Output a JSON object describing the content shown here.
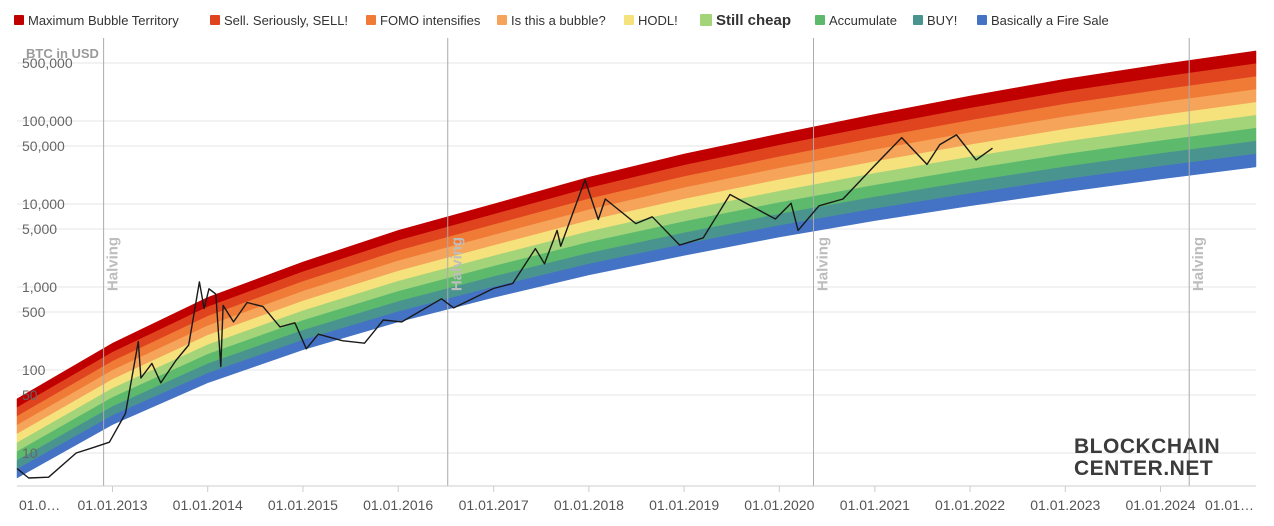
{
  "legend": [
    {
      "label": "Maximum Bubble Territory",
      "color": "#c00000",
      "bold": false
    },
    {
      "label": "Sell. Seriously, SELL!",
      "color": "#e0441f",
      "bold": false
    },
    {
      "label": "FOMO intensifies",
      "color": "#f07b37",
      "bold": false
    },
    {
      "label": "Is this a bubble?",
      "color": "#f5a45a",
      "bold": false
    },
    {
      "label": "HODL!",
      "color": "#f6e27c",
      "bold": false
    },
    {
      "label": "Still cheap",
      "color": "#a3d47a",
      "bold": true
    },
    {
      "label": "Accumulate",
      "color": "#5dba6c",
      "bold": false
    },
    {
      "label": "BUY!",
      "color": "#4a948f",
      "bold": false
    },
    {
      "label": "Basically a Fire Sale",
      "color": "#4472c4",
      "bold": false
    }
  ],
  "logo": {
    "line1": "BLOCKCHAIN",
    "line2": "CENTER.NET"
  },
  "chart_data": {
    "type": "area",
    "title": "",
    "ylabel": "BTC in USD",
    "y_scale": "log",
    "ylim": [
      4,
      1000000
    ],
    "xlim": [
      "2012-01-01",
      "2025-01-01"
    ],
    "y_ticks": [
      {
        "value": 500000,
        "label": "500,000"
      },
      {
        "value": 100000,
        "label": "100,000"
      },
      {
        "value": 50000,
        "label": "50,000"
      },
      {
        "value": 10000,
        "label": "10,000"
      },
      {
        "value": 5000,
        "label": "5,000"
      },
      {
        "value": 1000,
        "label": "1,000"
      },
      {
        "value": 500,
        "label": "500"
      },
      {
        "value": 100,
        "label": "100"
      },
      {
        "value": 50,
        "label": "50"
      },
      {
        "value": 10,
        "label": "10"
      }
    ],
    "x_ticks": [
      {
        "date": "2012-01-01",
        "label": "01.0…"
      },
      {
        "date": "2013-01-01",
        "label": "01.01.2013"
      },
      {
        "date": "2014-01-01",
        "label": "01.01.2014"
      },
      {
        "date": "2015-01-01",
        "label": "01.01.2015"
      },
      {
        "date": "2016-01-01",
        "label": "01.01.2016"
      },
      {
        "date": "2017-01-01",
        "label": "01.01.2017"
      },
      {
        "date": "2018-01-01",
        "label": "01.01.2018"
      },
      {
        "date": "2019-01-01",
        "label": "01.01.2019"
      },
      {
        "date": "2020-01-01",
        "label": "01.01.2020"
      },
      {
        "date": "2021-01-01",
        "label": "01.01.2021"
      },
      {
        "date": "2022-01-01",
        "label": "01.01.2022"
      },
      {
        "date": "2023-01-01",
        "label": "01.01.2023"
      },
      {
        "date": "2024-01-01",
        "label": "01.01.2024"
      },
      {
        "date": "2025-01-01",
        "label": "01.01…"
      }
    ],
    "annotations": [
      {
        "date": "2012-11-28",
        "label": "Halving"
      },
      {
        "date": "2016-07-09",
        "label": "Halving"
      },
      {
        "date": "2020-05-11",
        "label": "Halving"
      },
      {
        "date": "2024-04-20",
        "label": "Halving"
      }
    ],
    "bands": {
      "top": [
        {
          "date": "2012-01-01",
          "value": 45
        },
        {
          "date": "2013-01-01",
          "value": 210
        },
        {
          "date": "2014-01-01",
          "value": 750
        },
        {
          "date": "2015-01-01",
          "value": 2000
        },
        {
          "date": "2016-01-01",
          "value": 4800
        },
        {
          "date": "2017-01-01",
          "value": 10000
        },
        {
          "date": "2018-01-01",
          "value": 21000
        },
        {
          "date": "2019-01-01",
          "value": 40000
        },
        {
          "date": "2020-01-01",
          "value": 70000
        },
        {
          "date": "2021-01-01",
          "value": 120000
        },
        {
          "date": "2022-01-01",
          "value": 200000
        },
        {
          "date": "2023-01-01",
          "value": 320000
        },
        {
          "date": "2024-01-01",
          "value": 480000
        },
        {
          "date": "2025-01-01",
          "value": 700000
        }
      ],
      "bottom": [
        {
          "date": "2012-01-01",
          "value": 5
        },
        {
          "date": "2013-01-01",
          "value": 22
        },
        {
          "date": "2014-01-01",
          "value": 70
        },
        {
          "date": "2015-01-01",
          "value": 175
        },
        {
          "date": "2016-01-01",
          "value": 380
        },
        {
          "date": "2017-01-01",
          "value": 750
        },
        {
          "date": "2018-01-01",
          "value": 1400
        },
        {
          "date": "2019-01-01",
          "value": 2400
        },
        {
          "date": "2020-01-01",
          "value": 4000
        },
        {
          "date": "2021-01-01",
          "value": 6300
        },
        {
          "date": "2022-01-01",
          "value": 9500
        },
        {
          "date": "2023-01-01",
          "value": 14000
        },
        {
          "date": "2024-01-01",
          "value": 20000
        },
        {
          "date": "2025-01-01",
          "value": 28000
        }
      ]
    },
    "price_series": {
      "name": "BTC price",
      "points": [
        {
          "date": "2012-01-01",
          "value": 6.5
        },
        {
          "date": "2012-02-15",
          "value": 5
        },
        {
          "date": "2012-05-01",
          "value": 5.1
        },
        {
          "date": "2012-08-15",
          "value": 10
        },
        {
          "date": "2012-10-15",
          "value": 11.5
        },
        {
          "date": "2012-12-20",
          "value": 13.5
        },
        {
          "date": "2013-02-20",
          "value": 30
        },
        {
          "date": "2013-04-10",
          "value": 220
        },
        {
          "date": "2013-04-20",
          "value": 80
        },
        {
          "date": "2013-06-01",
          "value": 120
        },
        {
          "date": "2013-07-05",
          "value": 70
        },
        {
          "date": "2013-09-01",
          "value": 130
        },
        {
          "date": "2013-10-20",
          "value": 200
        },
        {
          "date": "2013-11-30",
          "value": 1150
        },
        {
          "date": "2013-12-18",
          "value": 550
        },
        {
          "date": "2014-01-06",
          "value": 950
        },
        {
          "date": "2014-02-01",
          "value": 820
        },
        {
          "date": "2014-02-20",
          "value": 110
        },
        {
          "date": "2014-03-01",
          "value": 600
        },
        {
          "date": "2014-04-10",
          "value": 380
        },
        {
          "date": "2014-06-01",
          "value": 650
        },
        {
          "date": "2014-08-01",
          "value": 580
        },
        {
          "date": "2014-10-05",
          "value": 330
        },
        {
          "date": "2014-12-01",
          "value": 370
        },
        {
          "date": "2015-01-14",
          "value": 180
        },
        {
          "date": "2015-03-01",
          "value": 270
        },
        {
          "date": "2015-06-01",
          "value": 225
        },
        {
          "date": "2015-08-25",
          "value": 210
        },
        {
          "date": "2015-11-05",
          "value": 400
        },
        {
          "date": "2016-01-15",
          "value": 380
        },
        {
          "date": "2016-06-15",
          "value": 720
        },
        {
          "date": "2016-08-01",
          "value": 560
        },
        {
          "date": "2016-12-31",
          "value": 960
        },
        {
          "date": "2017-03-15",
          "value": 1100
        },
        {
          "date": "2017-06-10",
          "value": 2900
        },
        {
          "date": "2017-07-15",
          "value": 1900
        },
        {
          "date": "2017-09-01",
          "value": 4800
        },
        {
          "date": "2017-09-15",
          "value": 3100
        },
        {
          "date": "2017-12-17",
          "value": 19500
        },
        {
          "date": "2018-02-06",
          "value": 6500
        },
        {
          "date": "2018-03-05",
          "value": 11500
        },
        {
          "date": "2018-06-30",
          "value": 5800
        },
        {
          "date": "2018-09-01",
          "value": 7000
        },
        {
          "date": "2018-12-15",
          "value": 3200
        },
        {
          "date": "2019-03-15",
          "value": 3900
        },
        {
          "date": "2019-06-26",
          "value": 13000
        },
        {
          "date": "2019-09-01",
          "value": 10000
        },
        {
          "date": "2019-12-17",
          "value": 6600
        },
        {
          "date": "2020-02-15",
          "value": 10200
        },
        {
          "date": "2020-03-13",
          "value": 4800
        },
        {
          "date": "2020-06-01",
          "value": 9500
        },
        {
          "date": "2020-09-01",
          "value": 11500
        },
        {
          "date": "2020-12-31",
          "value": 29000
        },
        {
          "date": "2021-04-14",
          "value": 63000
        },
        {
          "date": "2021-07-20",
          "value": 30000
        },
        {
          "date": "2021-09-07",
          "value": 52000
        },
        {
          "date": "2021-11-10",
          "value": 68000
        },
        {
          "date": "2022-01-24",
          "value": 34000
        },
        {
          "date": "2022-03-28",
          "value": 47000
        }
      ]
    }
  }
}
